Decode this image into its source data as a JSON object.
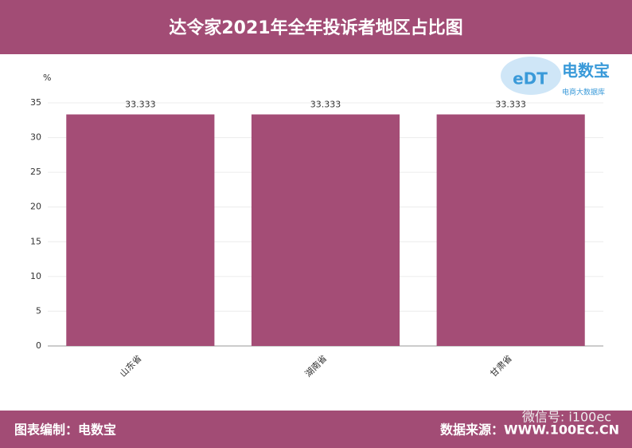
{
  "chart_data": {
    "type": "bar",
    "title": "达令家2021年全年投诉者地区占比图",
    "y_label": "%",
    "categories": [
      "山东省",
      "湖南省",
      "甘肃省"
    ],
    "values": [
      33.333,
      33.333,
      33.333
    ],
    "color": "#a44d76",
    "ylim": [
      0,
      35
    ],
    "yticks": [
      0,
      5,
      10,
      15,
      20,
      25,
      30,
      35
    ],
    "grid": true
  },
  "logo": {
    "mark": "eDT",
    "name": "电数宝",
    "tagline": "电商大数据库"
  },
  "footer": {
    "left": "图表编制：电数宝",
    "right": "数据来源：WWW.100EC.CN"
  },
  "watermark": "微信号: i100ec"
}
